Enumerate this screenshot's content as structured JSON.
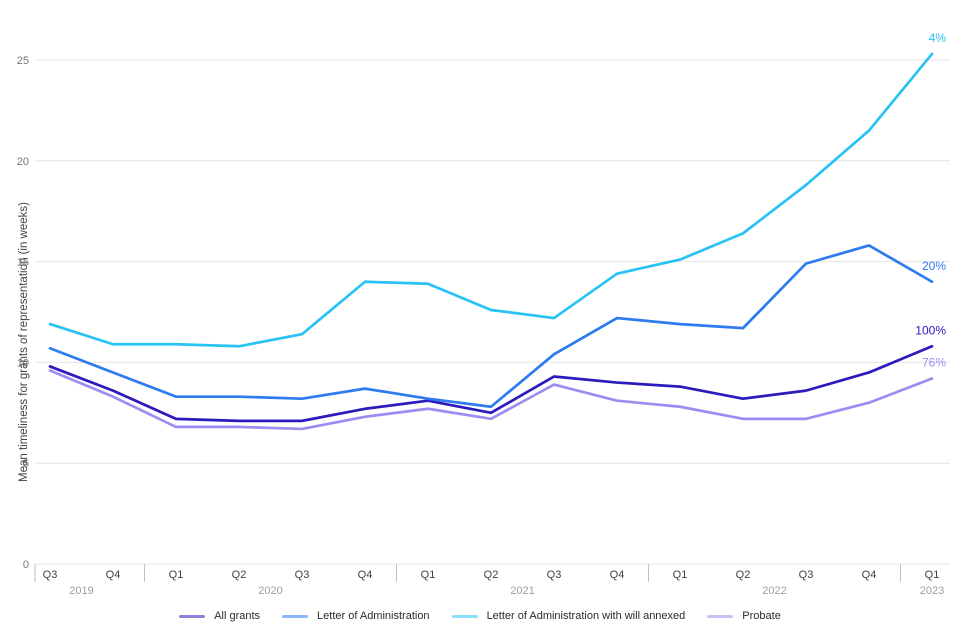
{
  "chart_data": {
    "type": "line",
    "title": "",
    "ylabel": "Mean timeliness for grants of representation (in weeks)",
    "xlabel": "",
    "x_quarters": [
      "Q3",
      "Q4",
      "Q1",
      "Q2",
      "Q3",
      "Q4",
      "Q1",
      "Q2",
      "Q3",
      "Q4",
      "Q1",
      "Q2",
      "Q3",
      "Q4",
      "Q1"
    ],
    "x_years": [
      {
        "label": "2019",
        "span": [
          0,
          1
        ]
      },
      {
        "label": "2020",
        "span": [
          2,
          5
        ]
      },
      {
        "label": "2021",
        "span": [
          6,
          9
        ]
      },
      {
        "label": "2022",
        "span": [
          10,
          13
        ]
      },
      {
        "label": "2023",
        "span": [
          14,
          14
        ]
      }
    ],
    "y_ticks": [
      0,
      5,
      10,
      15,
      20,
      25
    ],
    "ylim": [
      0,
      27
    ],
    "grid": "horizontal-only",
    "legend_position": "bottom",
    "series": [
      {
        "name": "All grants",
        "color": "#2b1abc",
        "end_label": "100%",
        "values": [
          9.8,
          8.6,
          7.2,
          7.1,
          7.1,
          7.7,
          8.1,
          7.5,
          9.3,
          9.0,
          8.8,
          8.2,
          8.6,
          9.5,
          10.8
        ]
      },
      {
        "name": "Letter of Administration",
        "color": "#2e7bf0",
        "end_label": "20%",
        "values": [
          10.7,
          9.5,
          8.3,
          8.3,
          8.2,
          8.7,
          8.2,
          7.8,
          10.4,
          12.2,
          11.9,
          11.7,
          14.9,
          15.8,
          14.0
        ]
      },
      {
        "name": "Letter of Administration with will annexed",
        "color": "#29c2f4",
        "end_label": "4%",
        "values": [
          11.9,
          10.9,
          10.9,
          10.8,
          11.4,
          14.0,
          13.9,
          12.6,
          12.2,
          14.4,
          15.1,
          16.4,
          18.8,
          21.5,
          25.3
        ]
      },
      {
        "name": "Probate",
        "color": "#9d8cf2",
        "end_label": "76%",
        "values": [
          9.6,
          8.3,
          6.8,
          6.8,
          6.7,
          7.3,
          7.7,
          7.2,
          8.9,
          8.1,
          7.8,
          7.2,
          7.2,
          8.0,
          9.2
        ]
      }
    ]
  }
}
